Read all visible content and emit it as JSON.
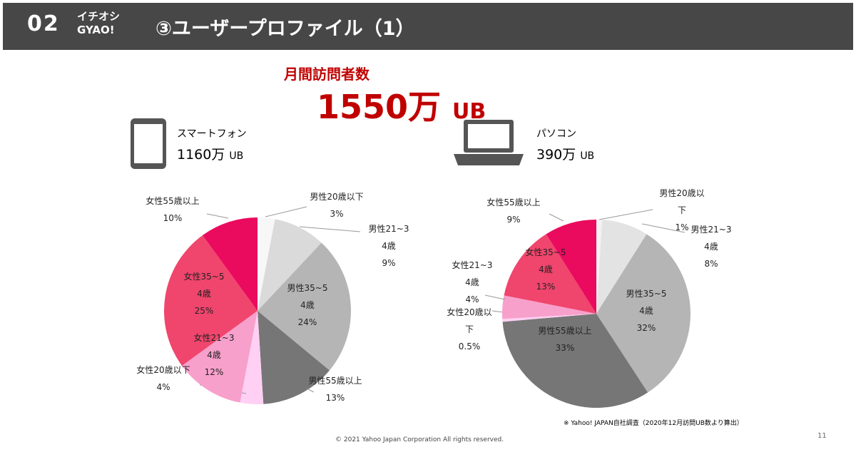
{
  "header": {
    "number": "02",
    "brand_line1": "イチオシ",
    "brand_line2": "GYAO!",
    "title": "③ユーザープロファイル（1）"
  },
  "headline": {
    "label": "月間訪問者数",
    "value": "1550万",
    "unit": "UB"
  },
  "devices": [
    {
      "name": "スマートフォン",
      "value": "1160万",
      "unit": "UB"
    },
    {
      "name": "パソコン",
      "value": "390万",
      "unit": "UB"
    }
  ],
  "chart_data": [
    {
      "type": "pie",
      "categories": [
        "男性20歳以下",
        "男性21~34歳",
        "男性35~54歳",
        "男性55歳以上",
        "女性20歳以下",
        "女性21~34歳",
        "女性35~54歳",
        "女性55歳以上"
      ],
      "values": [
        3,
        9,
        24,
        13,
        4,
        12,
        25,
        10
      ],
      "value_labels": [
        "3%",
        "9%",
        "24%",
        "13%",
        "4%",
        "12%",
        "25%",
        "10%"
      ],
      "colors": [
        "#f7f7f7",
        "#dadada",
        "#b5b5b5",
        "#767676",
        "#ffd0f4",
        "#f7a0cb",
        "#f0456d",
        "#ea0a5e"
      ]
    },
    {
      "type": "pie",
      "categories": [
        "男性20歳以下",
        "男性21~34歳",
        "男性35~54歳",
        "男性55歳以上",
        "女性20歳以下",
        "女性21~34歳",
        "女性35~54歳",
        "女性55歳以上"
      ],
      "values": [
        1,
        8,
        32,
        33,
        0.5,
        4,
        13,
        9
      ],
      "value_labels": [
        "1%",
        "8%",
        "32%",
        "33%",
        "0.5%",
        "4%",
        "13%",
        "9%"
      ],
      "colors": [
        "#f2f2f2",
        "#e3e3e3",
        "#b5b5b5",
        "#767676",
        "#ffd0f4",
        "#f7a0cb",
        "#f0456d",
        "#ea0a5e"
      ]
    }
  ],
  "footnote": "※ Yahoo! JAPAN自社調査（2020年12月訪問UB数より算出）",
  "copyright": "© 2021 Yahoo Japan Corporation All rights reserved.",
  "page_number": "11"
}
